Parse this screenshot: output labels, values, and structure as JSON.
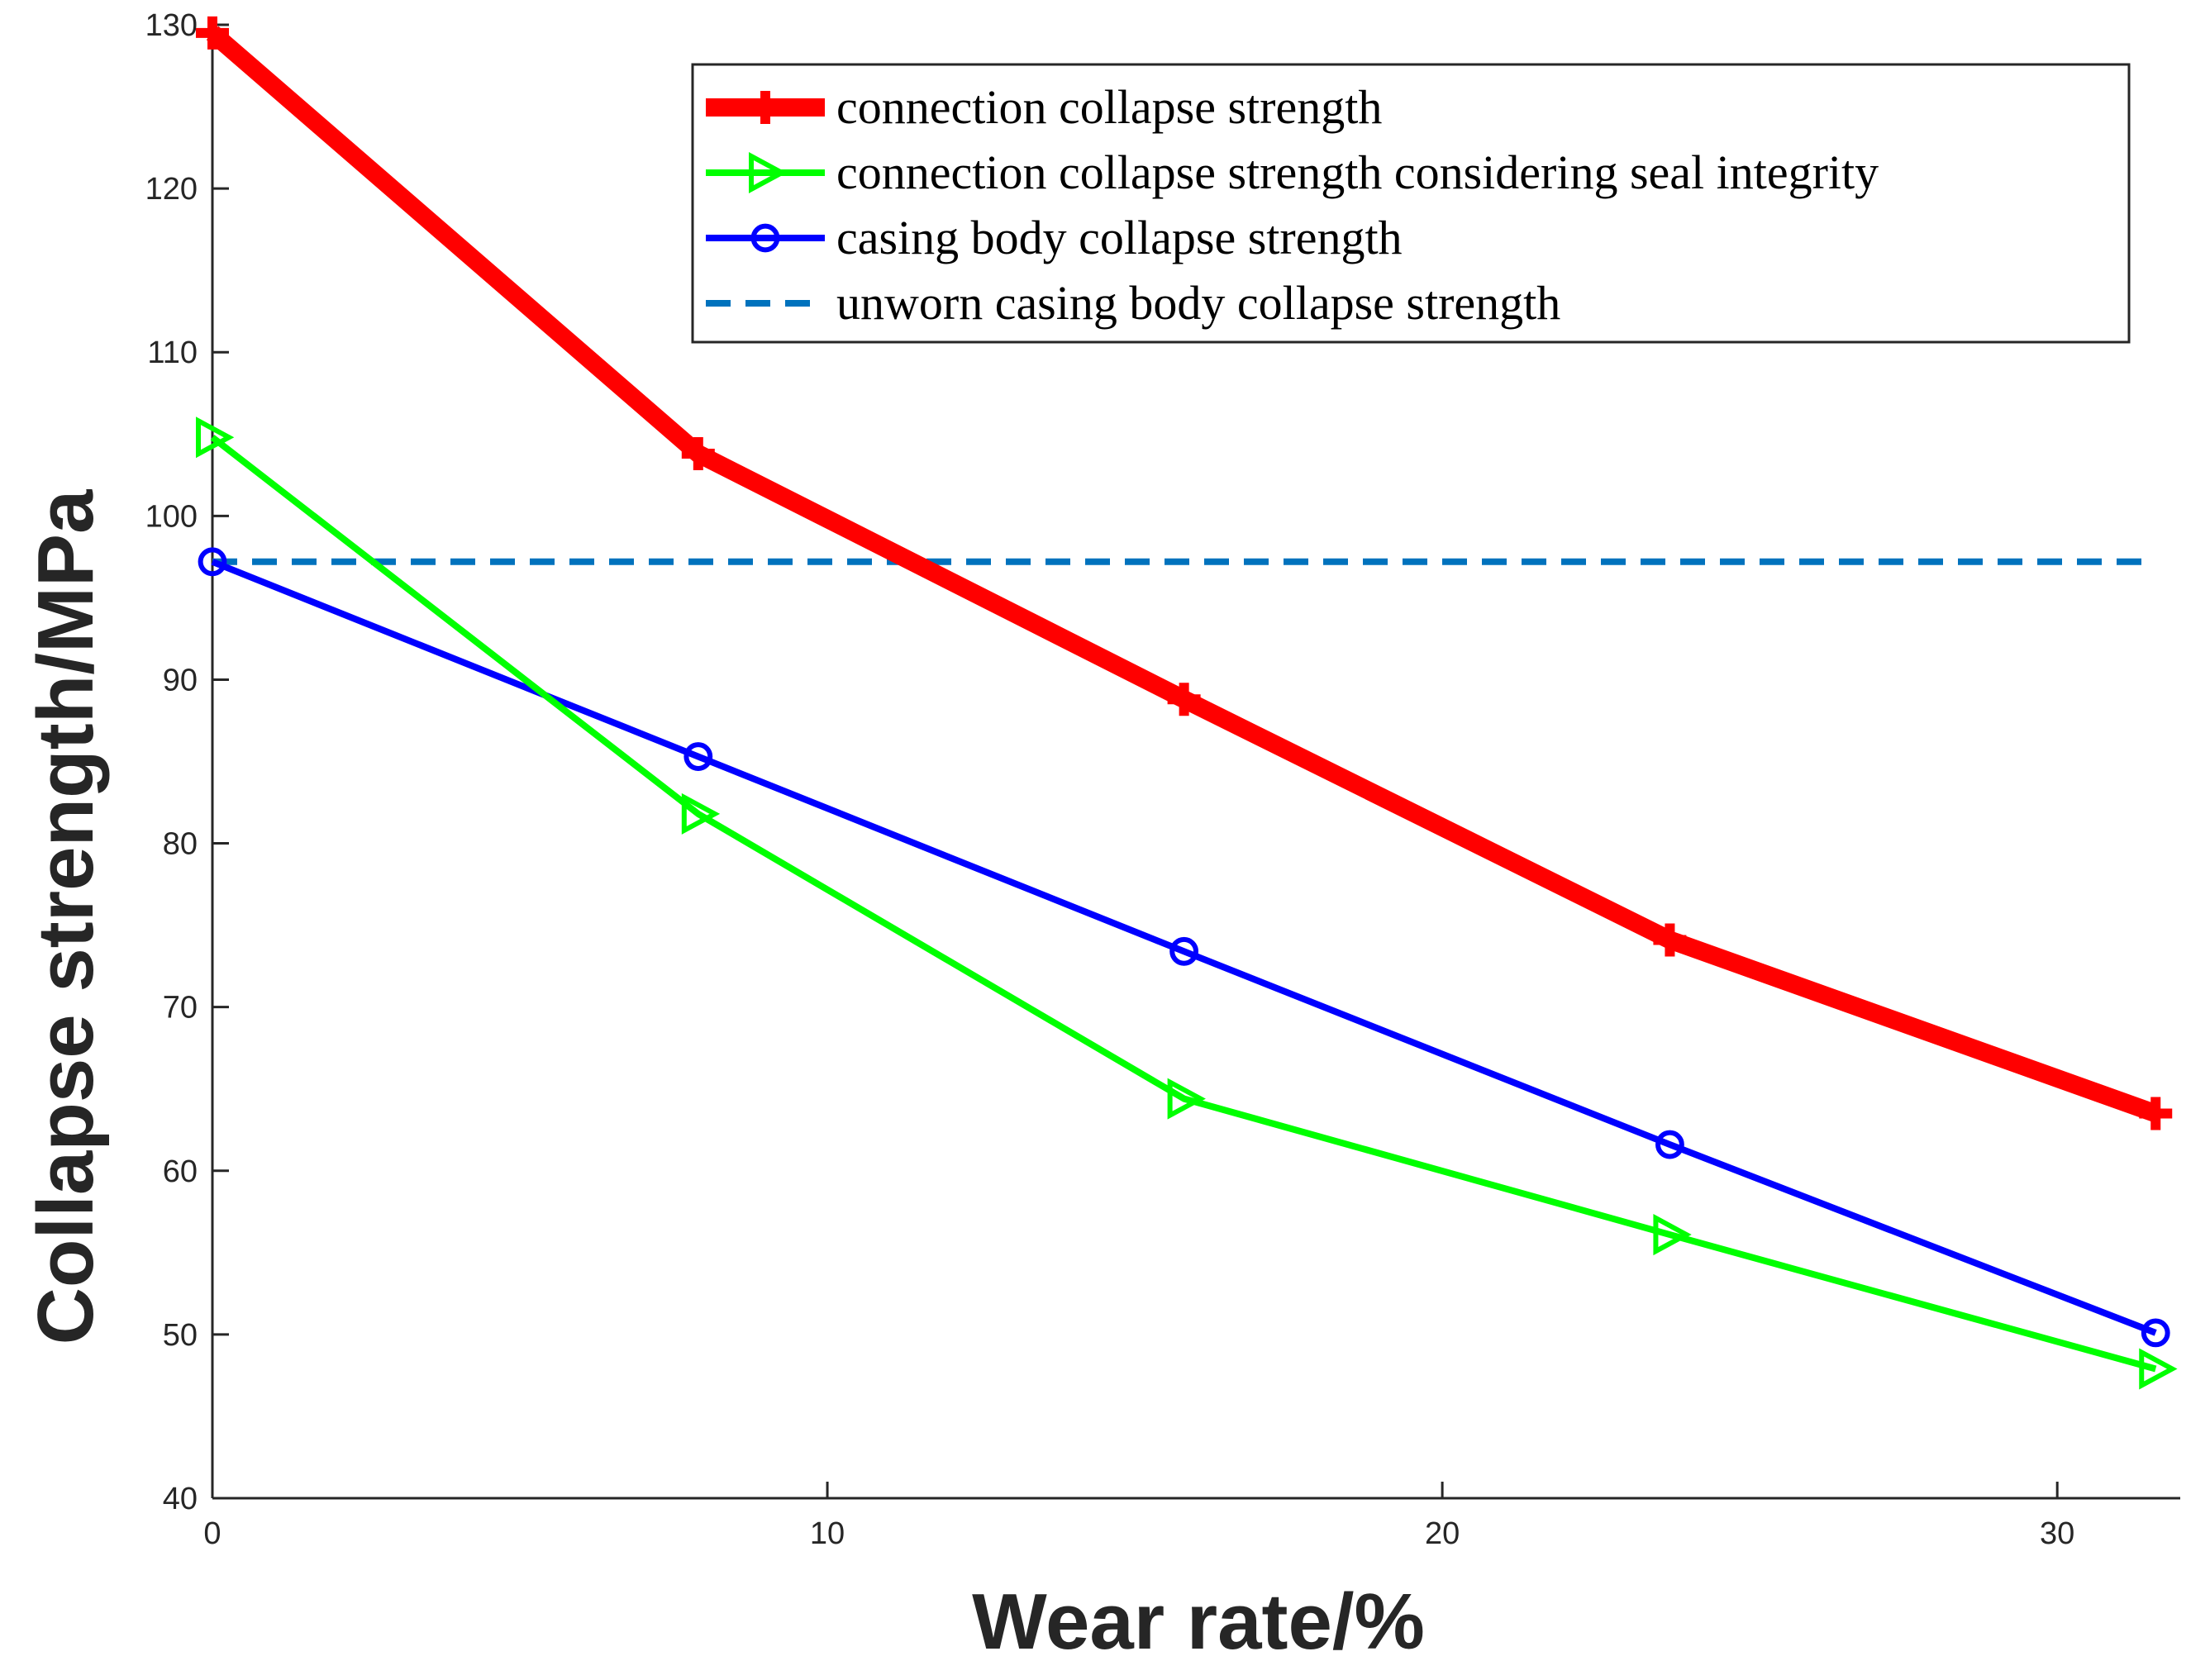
{
  "chart_data": {
    "type": "line",
    "title": "",
    "xlabel": "Wear rate/%",
    "ylabel": "Collapse strength/MPa",
    "xlim": [
      0,
      32
    ],
    "ylim": [
      40,
      130
    ],
    "xticks": [
      0,
      10,
      20,
      30
    ],
    "xtick_labels": [
      "0",
      "10",
      "20",
      "30"
    ],
    "yticks": [
      40,
      50,
      60,
      70,
      80,
      90,
      100,
      110,
      120,
      130
    ],
    "ytick_labels": [
      "40",
      "50",
      "60",
      "70",
      "80",
      "90",
      "100",
      "110",
      "120",
      "130"
    ],
    "grid": false,
    "legend_position": "top-right",
    "x": [
      0,
      7.9,
      15.8,
      23.7,
      31.6
    ],
    "series": [
      {
        "name": "connection collapse strength",
        "values": [
          129.5,
          103.8,
          88.8,
          74.1,
          63.5
        ],
        "color": "#ff0000",
        "marker": "plus",
        "style": "solid",
        "weight": "thick"
      },
      {
        "name": "connection collapse strength considering seal integrity",
        "values": [
          104.8,
          81.8,
          64.4,
          56.1,
          47.9
        ],
        "color": "#00ff00",
        "marker": "triangle-right",
        "style": "solid",
        "weight": "normal"
      },
      {
        "name": "casing body collapse strength",
        "values": [
          97.2,
          85.3,
          73.4,
          61.6,
          50.1
        ],
        "color": "#0000ff",
        "marker": "circle",
        "style": "solid",
        "weight": "normal"
      },
      {
        "name": "unworn casing body collapse strength",
        "values": [
          97.2,
          97.2,
          97.2,
          97.2,
          97.2
        ],
        "color": "#0072bd",
        "marker": "none",
        "style": "dashed",
        "weight": "normal"
      }
    ]
  }
}
